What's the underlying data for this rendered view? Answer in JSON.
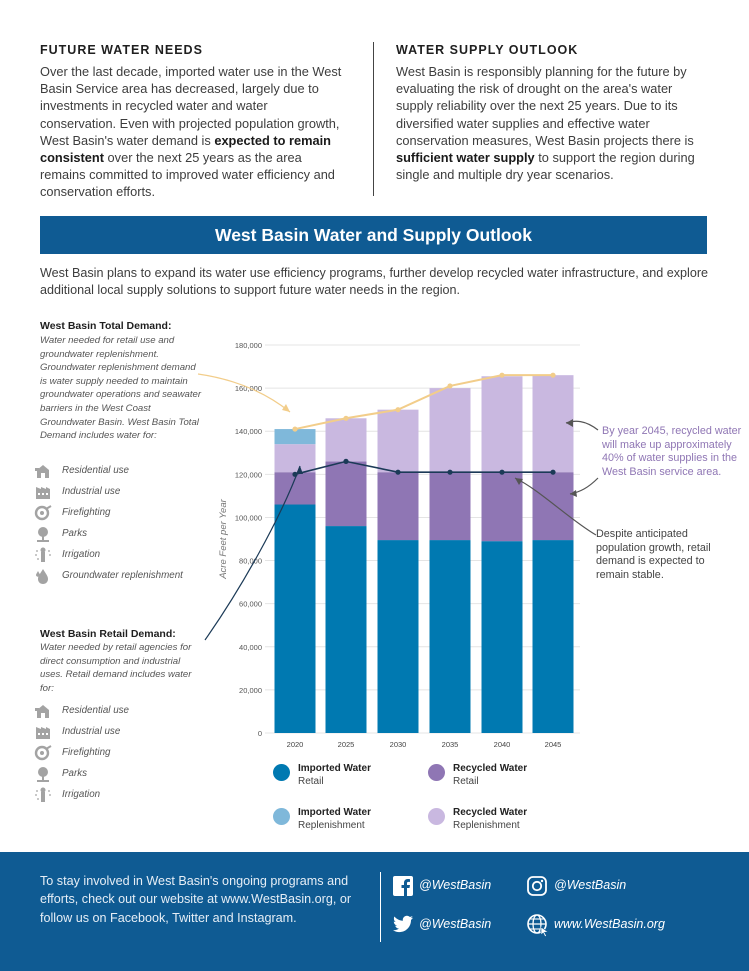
{
  "future_needs": {
    "heading": "FUTURE WATER NEEDS",
    "p1": "Over the last decade, imported water use in the West Basin Service area has decreased, largely due to investments in recycled water and water conservation. Even with projected population growth, West Basin's water demand is ",
    "bold": "expected to remain consistent",
    "p2": " over the next 25 years as the area remains committed to improved water efficiency and conservation efforts."
  },
  "supply_outlook": {
    "heading": "WATER SUPPLY OUTLOOK",
    "p1": "West Basin is responsibly planning for the future by evaluating the risk of drought on the area's water supply reliability over the next 25 years. Due to its diversified water supplies and effective water conservation measures, West Basin projects there is ",
    "bold": "sufficient water supply",
    "p2": " to support the region during single and multiple dry year scenarios."
  },
  "banner_title": "West Basin Water and Supply Outlook",
  "intro": "West Basin plans to expand its water use efficiency programs, further develop recycled water infrastructure, and explore additional local supply solutions to support future water needs in the region.",
  "total_demand": {
    "title": "West Basin Total Demand:",
    "desc": "Water needed for retail use and groundwater replenishment. Groundwater replenishment demand is water supply needed to maintain groundwater operations and seawater barriers in the West Coast Groundwater Basin. West Basin Total Demand includes water for:",
    "uses": [
      {
        "label": "Residential use",
        "icon": "residential-icon"
      },
      {
        "label": "Industrial use",
        "icon": "industrial-icon"
      },
      {
        "label": "Firefighting",
        "icon": "fire-hose-icon"
      },
      {
        "label": "Parks",
        "icon": "tree-icon"
      },
      {
        "label": "Irrigation",
        "icon": "sprinkler-icon"
      },
      {
        "label": "Groundwater replenishment",
        "icon": "water-drop-icon"
      }
    ]
  },
  "retail_demand": {
    "title": "West Basin Retail Demand:",
    "desc": "Water needed by retail agencies for direct consumption and industrial uses. Retail demand includes water for:",
    "uses": [
      {
        "label": "Residential use",
        "icon": "residential-icon"
      },
      {
        "label": "Industrial use",
        "icon": "industrial-icon"
      },
      {
        "label": "Firefighting",
        "icon": "fire-hose-icon"
      },
      {
        "label": "Parks",
        "icon": "tree-icon"
      },
      {
        "label": "Irrigation",
        "icon": "sprinkler-icon"
      }
    ]
  },
  "annotations": {
    "recycled": "By year 2045, recycled water will make up approximately 40% of water supplies in the West Basin service area.",
    "retail": "Despite anticipated population growth, retail demand is expected to remain stable."
  },
  "chart_data": {
    "type": "bar",
    "stacked": true,
    "ylabel": "Acre Feet per Year",
    "ylim": [
      0,
      180000
    ],
    "yticks": [
      0,
      20000,
      40000,
      60000,
      80000,
      100000,
      120000,
      140000,
      160000,
      180000
    ],
    "ytick_labels": [
      "0",
      "20,000",
      "40,000",
      "60,000",
      "80,000",
      "100,000",
      "120,000",
      "140,000",
      "160,000",
      "180,000"
    ],
    "categories": [
      "2020",
      "2025",
      "2030",
      "2035",
      "2040",
      "2045"
    ],
    "series": [
      {
        "name": "Imported Water Retail",
        "color": "#0079b1",
        "values": [
          106000,
          96000,
          89500,
          89500,
          89000,
          89500
        ]
      },
      {
        "name": "Recycled Water Retail",
        "color": "#8f76b4",
        "values": [
          15000,
          30000,
          31500,
          31500,
          32000,
          31500
        ]
      },
      {
        "name": "Recycled Water Replenishment",
        "color": "#c9b8e0",
        "values": [
          13000,
          20000,
          29000,
          39000,
          44500,
          45000
        ]
      },
      {
        "name": "Imported Water Replenishment",
        "color": "#7fb8da",
        "values": [
          7000,
          0,
          0,
          0,
          0,
          0
        ]
      }
    ],
    "lines": [
      {
        "role": "total demand",
        "color": "#f2cd8a",
        "values": [
          141000,
          146000,
          150000,
          161000,
          166000,
          166000
        ]
      },
      {
        "role": "retail demand",
        "color": "#1b3a57",
        "values": [
          120000,
          126000,
          121000,
          121000,
          121000,
          121000
        ]
      }
    ],
    "legend": [
      {
        "title": "Imported Water",
        "sub": "Retail",
        "color": "#0079b1"
      },
      {
        "title": "Recycled Water",
        "sub": "Retail",
        "color": "#8f76b4"
      },
      {
        "title": "Imported Water",
        "sub": "Replenishment",
        "color": "#7fb8da"
      },
      {
        "title": "Recycled Water",
        "sub": "Replenishment",
        "color": "#c9b8e0"
      }
    ],
    "legend_placement": "bottom"
  },
  "footer": {
    "text": "To stay involved in West Basin's ongoing programs and efforts, check out our website at www.WestBasin.org, or follow us on Facebook, Twitter and Instagram.",
    "facebook": "@WestBasin",
    "instagram": "@WestBasin",
    "twitter": "@WestBasin",
    "website": "www.WestBasin.org"
  }
}
